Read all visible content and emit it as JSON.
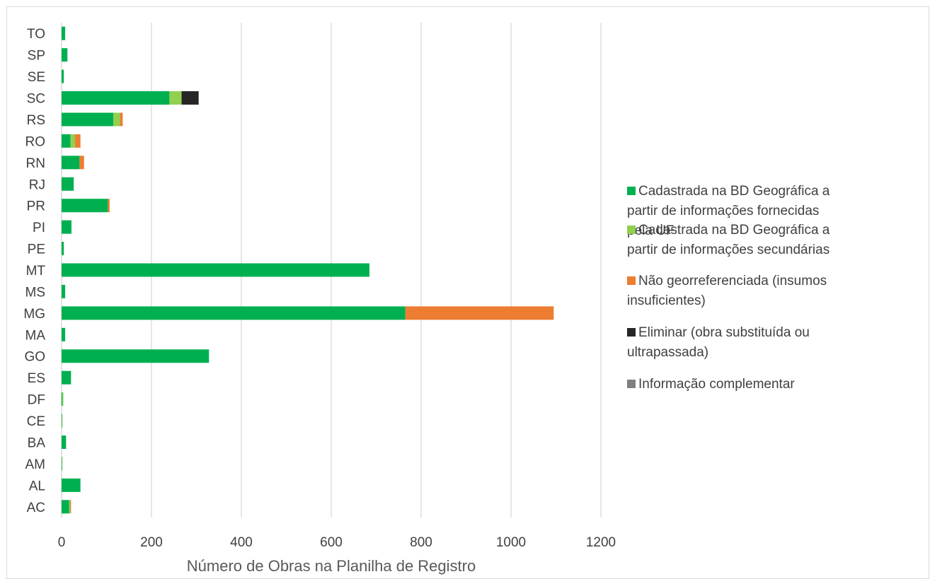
{
  "chart_data": {
    "type": "bar",
    "orientation": "horizontal",
    "stacked": true,
    "title": "",
    "xlabel": "Número de Obras na Planilha de Registro",
    "ylabel": "",
    "xlim": [
      0,
      1200
    ],
    "xticks": [
      "0",
      "200",
      "400",
      "600",
      "800",
      "1000",
      "1200"
    ],
    "grid": "vertical",
    "legend_position": "right",
    "categories": [
      "TO",
      "SP",
      "SE",
      "SC",
      "RS",
      "RO",
      "RN",
      "RJ",
      "PR",
      "PI",
      "PE",
      "MT",
      "MS",
      "MG",
      "MA",
      "GO",
      "ES",
      "DF",
      "CE",
      "BA",
      "AM",
      "AL",
      "AC"
    ],
    "series": [
      {
        "name": "Cadastrada na BD Geográfica a partir de informações fornecidas pela UF",
        "color": "#00b050",
        "values": [
          8,
          13,
          5,
          240,
          115,
          20,
          40,
          27,
          103,
          22,
          5,
          685,
          8,
          765,
          8,
          328,
          21,
          2,
          1,
          10,
          1,
          42,
          17
        ]
      },
      {
        "name": "Cadastrada na BD Geográfica a partir de informações secundárias",
        "color": "#92d050",
        "values": [
          0,
          0,
          0,
          27,
          15,
          10,
          0,
          0,
          0,
          0,
          0,
          0,
          0,
          0,
          0,
          0,
          0,
          2,
          1,
          0,
          1,
          0,
          2
        ]
      },
      {
        "name": "Não georreferenciada (insumos insuficientes)",
        "color": "#ed7d31",
        "values": [
          0,
          0,
          0,
          0,
          6,
          12,
          10,
          0,
          4,
          0,
          0,
          0,
          0,
          330,
          0,
          0,
          0,
          0,
          0,
          0,
          0,
          0,
          2
        ]
      },
      {
        "name": "Eliminar (obra substituída ou ultrapassada)",
        "color": "#262626",
        "values": [
          0,
          0,
          0,
          38,
          0,
          0,
          0,
          0,
          0,
          0,
          0,
          0,
          0,
          0,
          0,
          0,
          0,
          0,
          0,
          0,
          0,
          0,
          0
        ]
      },
      {
        "name": "Informação complementar",
        "color": "#808080",
        "values": [
          0,
          0,
          0,
          0,
          0,
          0,
          0,
          0,
          0,
          0,
          0,
          0,
          0,
          0,
          0,
          0,
          0,
          0,
          0,
          0,
          0,
          0,
          0
        ]
      }
    ]
  }
}
